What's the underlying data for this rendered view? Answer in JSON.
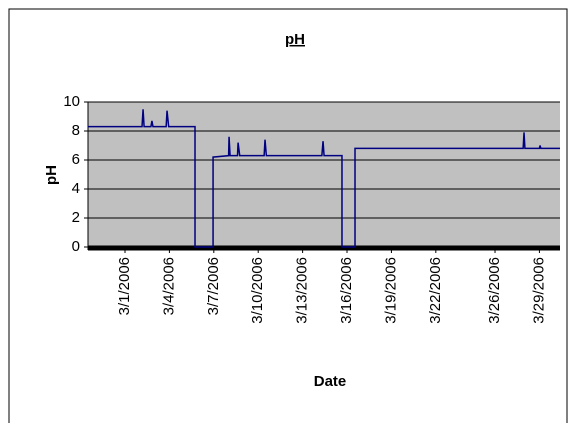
{
  "chart_data": {
    "type": "line",
    "title": "pH",
    "xlabel": "Date",
    "ylabel": "pH",
    "x": [
      -1.5,
      2.15,
      2.22,
      2.29,
      2.75,
      2.82,
      2.89,
      3.78,
      3.84,
      3.95,
      5.73,
      5.73,
      6.95,
      6.95,
      8.0,
      8.03,
      8.1,
      8.6,
      8.64,
      8.75,
      10.4,
      10.46,
      10.55,
      14.3,
      14.38,
      14.45,
      15.66,
      15.66,
      16.54,
      16.54,
      27.9,
      27.96,
      28.02,
      29.0,
      29.04,
      29.1,
      30.39
    ],
    "series": [
      {
        "name": "pH",
        "color": "#000080",
        "values": [
          8.3,
          8.3,
          9.5,
          8.3,
          8.3,
          8.7,
          8.3,
          8.3,
          9.4,
          8.3,
          8.3,
          0,
          0,
          6.2,
          6.3,
          7.6,
          6.3,
          6.3,
          7.2,
          6.3,
          6.3,
          7.4,
          6.3,
          6.3,
          7.3,
          6.3,
          6.3,
          0,
          0,
          6.8,
          6.8,
          7.9,
          6.8,
          6.8,
          7.0,
          6.8,
          6.8
        ]
      }
    ],
    "xlim": [
      -1.5,
      30.39
    ],
    "xticks": [
      {
        "value": 1,
        "label": "3/1/2006"
      },
      {
        "value": 4,
        "label": "3/4/2006"
      },
      {
        "value": 7,
        "label": "3/7/2006"
      },
      {
        "value": 10,
        "label": "3/10/2006"
      },
      {
        "value": 13,
        "label": "3/13/2006"
      },
      {
        "value": 16,
        "label": "3/16/2006"
      },
      {
        "value": 19,
        "label": "3/19/2006"
      },
      {
        "value": 22,
        "label": "3/22/2006"
      },
      {
        "value": 26,
        "label": "3/26/2006"
      },
      {
        "value": 29,
        "label": "3/29/2006"
      }
    ],
    "ylim": [
      0,
      10
    ],
    "yticks": [
      0,
      2,
      4,
      6,
      8,
      10
    ],
    "grid": true,
    "plot_background": "#c0c0c0"
  }
}
